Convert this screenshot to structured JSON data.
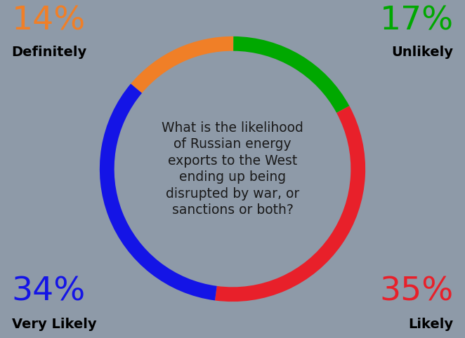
{
  "chart_data": {
    "type": "pie",
    "title": "What is the likelihood of Russian energy exports to the West ending up being disrupted by war, or sanctions or both?",
    "categories": [
      "Definitely",
      "Unlikely",
      "Likely",
      "Very Likely"
    ],
    "values": [
      14,
      17,
      35,
      34
    ],
    "value_labels": [
      "14%",
      "17%",
      "35%",
      "34%"
    ],
    "colors": [
      "#f07f27",
      "#00a800",
      "#e8202a",
      "#1414e6"
    ],
    "data_labels": true
  }
}
